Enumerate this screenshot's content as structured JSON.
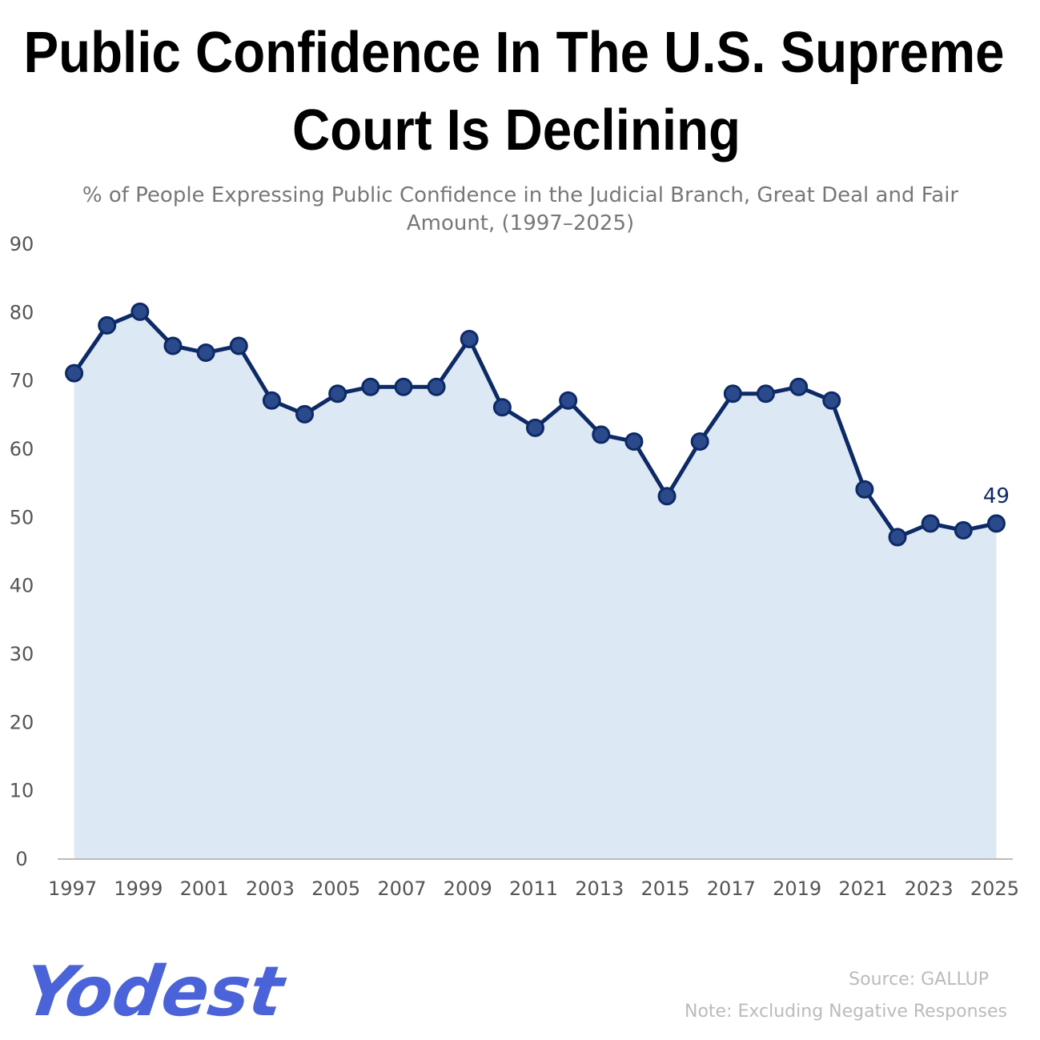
{
  "chart_data": {
    "type": "area-line",
    "title": [
      "Public Confidence In The U.S. Supreme",
      "Court Is Declining"
    ],
    "subtitle": [
      "% of People Expressing Public Confidence in the Judicial Branch, Great Deal and Fair",
      "Amount, (1997–2025)"
    ],
    "x": [
      1997,
      1998,
      1999,
      2000,
      2001,
      2002,
      2003,
      2004,
      2005,
      2006,
      2007,
      2008,
      2009,
      2010,
      2011,
      2012,
      2013,
      2014,
      2015,
      2016,
      2017,
      2018,
      2019,
      2020,
      2021,
      2022,
      2023,
      2024,
      2025
    ],
    "series": [
      {
        "name": "Confidence",
        "color": "#0d2a66",
        "fill": "#dce8f4",
        "marker_color": "#2a4a8c",
        "values": [
          71,
          78,
          80,
          75,
          74,
          75,
          67,
          65,
          68,
          69,
          69,
          69,
          76,
          66,
          63,
          67,
          62,
          61,
          53,
          61,
          68,
          68,
          69,
          67,
          54,
          47,
          49,
          48,
          49
        ]
      }
    ],
    "data_labels": "last",
    "xlim": [
      1996.5,
      2025.5
    ],
    "xticks": [
      1997,
      1999,
      2001,
      2003,
      2005,
      2007,
      2009,
      2011,
      2013,
      2015,
      2017,
      2019,
      2021,
      2023,
      2025
    ],
    "ylim": [
      0,
      90
    ],
    "yticks": [
      0,
      10,
      20,
      30,
      40,
      50,
      60,
      70,
      80,
      90
    ],
    "grid": false,
    "source": "Source: GALLUP",
    "note": "Note: Excluding Negative Responses",
    "logo": "Yodest"
  }
}
